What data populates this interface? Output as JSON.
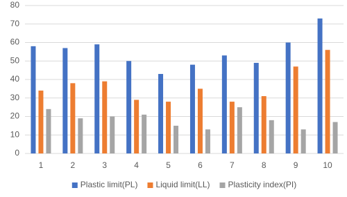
{
  "chart_data": {
    "type": "bar",
    "categories": [
      "1",
      "2",
      "3",
      "4",
      "5",
      "6",
      "7",
      "8",
      "9",
      "10"
    ],
    "series": [
      {
        "name": "Plastic limit(PL)",
        "color": "#4472c4",
        "values": [
          58,
          57,
          59,
          50,
          43,
          48,
          53,
          49,
          60,
          73
        ]
      },
      {
        "name": "Liquid limit(LL)",
        "color": "#ed7d31",
        "values": [
          34,
          38,
          39,
          29,
          28,
          35,
          28,
          31,
          47,
          56
        ]
      },
      {
        "name": "Plasticity index(PI)",
        "color": "#a5a5a5",
        "values": [
          24,
          19,
          20,
          21,
          15,
          13,
          25,
          18,
          13,
          17
        ]
      }
    ],
    "ylim": [
      0,
      80
    ],
    "yticks": [
      0,
      10,
      20,
      30,
      40,
      50,
      60,
      70,
      80
    ],
    "grid": true,
    "legend": "bottom"
  }
}
